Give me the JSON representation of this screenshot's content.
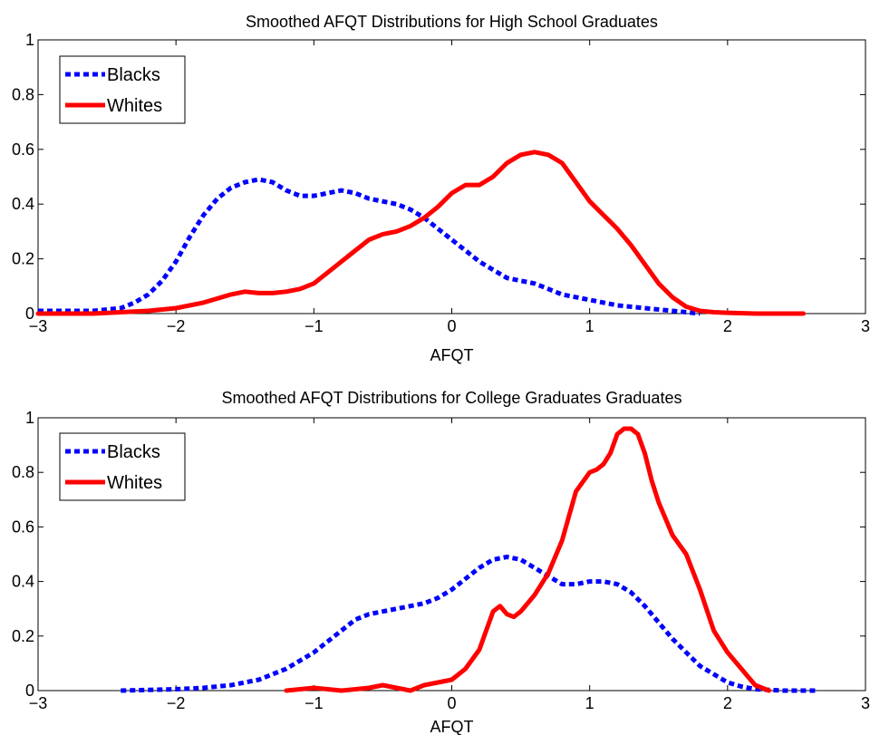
{
  "chart_data": [
    {
      "type": "line",
      "title": "Smoothed AFQT Distributions for High School Graduates",
      "xlabel": "AFQT",
      "ylabel": "",
      "xlim": [
        -3,
        3
      ],
      "ylim": [
        0,
        1
      ],
      "xticks": [
        -3,
        -2,
        -1,
        0,
        1,
        2,
        3
      ],
      "xtick_labels": [
        "−3",
        "−2",
        "−1",
        "0",
        "1",
        "2",
        "3"
      ],
      "yticks": [
        0,
        0.2,
        0.4,
        0.6,
        0.8,
        1
      ],
      "ytick_labels": [
        "0",
        "0.2",
        "0.4",
        "0.6",
        "0.8",
        "1"
      ],
      "legend": "top-left",
      "grid": false,
      "series": [
        {
          "name": "Blacks",
          "color": "#0000ff",
          "style": "dashed",
          "x": [
            -3.0,
            -2.8,
            -2.6,
            -2.4,
            -2.3,
            -2.2,
            -2.1,
            -2.0,
            -1.9,
            -1.8,
            -1.7,
            -1.6,
            -1.5,
            -1.4,
            -1.3,
            -1.2,
            -1.1,
            -1.0,
            -0.9,
            -0.8,
            -0.7,
            -0.6,
            -0.5,
            -0.4,
            -0.3,
            -0.2,
            -0.1,
            0.0,
            0.1,
            0.2,
            0.3,
            0.4,
            0.5,
            0.6,
            0.7,
            0.8,
            0.9,
            1.0,
            1.2,
            1.4,
            1.6,
            1.8
          ],
          "y": [
            0.01,
            0.01,
            0.01,
            0.02,
            0.04,
            0.07,
            0.12,
            0.19,
            0.28,
            0.36,
            0.42,
            0.46,
            0.48,
            0.49,
            0.48,
            0.45,
            0.43,
            0.43,
            0.44,
            0.45,
            0.44,
            0.42,
            0.41,
            0.4,
            0.38,
            0.35,
            0.31,
            0.27,
            0.23,
            0.19,
            0.16,
            0.13,
            0.12,
            0.11,
            0.09,
            0.07,
            0.06,
            0.05,
            0.03,
            0.02,
            0.01,
            0.0
          ]
        },
        {
          "name": "Whites",
          "color": "#ff0000",
          "style": "solid",
          "x": [
            -3.0,
            -2.6,
            -2.4,
            -2.2,
            -2.0,
            -1.8,
            -1.6,
            -1.5,
            -1.4,
            -1.3,
            -1.2,
            -1.1,
            -1.0,
            -0.9,
            -0.8,
            -0.7,
            -0.6,
            -0.5,
            -0.4,
            -0.3,
            -0.2,
            -0.1,
            0.0,
            0.1,
            0.2,
            0.3,
            0.4,
            0.5,
            0.6,
            0.7,
            0.8,
            0.9,
            1.0,
            1.1,
            1.2,
            1.3,
            1.4,
            1.5,
            1.6,
            1.7,
            1.8,
            1.9,
            2.0,
            2.2,
            2.55
          ],
          "y": [
            0.0,
            0.0,
            0.005,
            0.01,
            0.02,
            0.04,
            0.07,
            0.08,
            0.075,
            0.075,
            0.08,
            0.09,
            0.11,
            0.15,
            0.19,
            0.23,
            0.27,
            0.29,
            0.3,
            0.32,
            0.35,
            0.39,
            0.44,
            0.47,
            0.47,
            0.5,
            0.55,
            0.58,
            0.59,
            0.58,
            0.55,
            0.48,
            0.41,
            0.36,
            0.31,
            0.25,
            0.18,
            0.11,
            0.06,
            0.025,
            0.01,
            0.005,
            0.003,
            0.0,
            0.0
          ]
        }
      ]
    },
    {
      "type": "line",
      "title": "Smoothed AFQT Distributions for College Graduates Graduates",
      "xlabel": "AFQT",
      "ylabel": "",
      "xlim": [
        -3,
        3
      ],
      "ylim": [
        0,
        1
      ],
      "xticks": [
        -3,
        -2,
        -1,
        0,
        1,
        2,
        3
      ],
      "xtick_labels": [
        "−3",
        "−2",
        "−1",
        "0",
        "1",
        "2",
        "3"
      ],
      "yticks": [
        0,
        0.2,
        0.4,
        0.6,
        0.8,
        1
      ],
      "ytick_labels": [
        "0",
        "0.2",
        "0.4",
        "0.6",
        "0.8",
        "1"
      ],
      "legend": "top-left",
      "grid": false,
      "series": [
        {
          "name": "Blacks",
          "color": "#0000ff",
          "style": "dashed",
          "x": [
            -2.4,
            -2.0,
            -1.8,
            -1.6,
            -1.4,
            -1.2,
            -1.0,
            -0.9,
            -0.8,
            -0.7,
            -0.6,
            -0.5,
            -0.4,
            -0.3,
            -0.2,
            -0.1,
            0.0,
            0.1,
            0.2,
            0.3,
            0.4,
            0.5,
            0.6,
            0.7,
            0.8,
            0.9,
            1.0,
            1.1,
            1.2,
            1.3,
            1.4,
            1.5,
            1.6,
            1.7,
            1.8,
            1.9,
            2.0,
            2.1,
            2.2,
            2.4,
            2.65
          ],
          "y": [
            0.0,
            0.005,
            0.01,
            0.02,
            0.04,
            0.08,
            0.14,
            0.18,
            0.22,
            0.26,
            0.28,
            0.29,
            0.3,
            0.31,
            0.32,
            0.34,
            0.37,
            0.41,
            0.45,
            0.48,
            0.49,
            0.48,
            0.45,
            0.42,
            0.39,
            0.39,
            0.4,
            0.4,
            0.39,
            0.36,
            0.31,
            0.25,
            0.19,
            0.14,
            0.09,
            0.06,
            0.03,
            0.015,
            0.005,
            0.0,
            0.0
          ]
        },
        {
          "name": "Whites",
          "color": "#ff0000",
          "style": "solid",
          "x": [
            -1.2,
            -1.0,
            -0.8,
            -0.6,
            -0.5,
            -0.4,
            -0.3,
            -0.2,
            -0.1,
            0.0,
            0.1,
            0.2,
            0.3,
            0.35,
            0.4,
            0.45,
            0.5,
            0.55,
            0.6,
            0.7,
            0.8,
            0.9,
            1.0,
            1.05,
            1.1,
            1.15,
            1.2,
            1.25,
            1.3,
            1.35,
            1.4,
            1.45,
            1.5,
            1.6,
            1.7,
            1.8,
            1.9,
            2.0,
            2.1,
            2.2,
            2.3
          ],
          "y": [
            0.0,
            0.01,
            0.0,
            0.01,
            0.02,
            0.01,
            0.0,
            0.02,
            0.03,
            0.04,
            0.08,
            0.15,
            0.29,
            0.31,
            0.28,
            0.27,
            0.29,
            0.32,
            0.35,
            0.43,
            0.55,
            0.73,
            0.8,
            0.81,
            0.83,
            0.87,
            0.94,
            0.96,
            0.96,
            0.94,
            0.87,
            0.77,
            0.69,
            0.57,
            0.5,
            0.37,
            0.22,
            0.14,
            0.08,
            0.02,
            0.0
          ]
        }
      ]
    }
  ]
}
